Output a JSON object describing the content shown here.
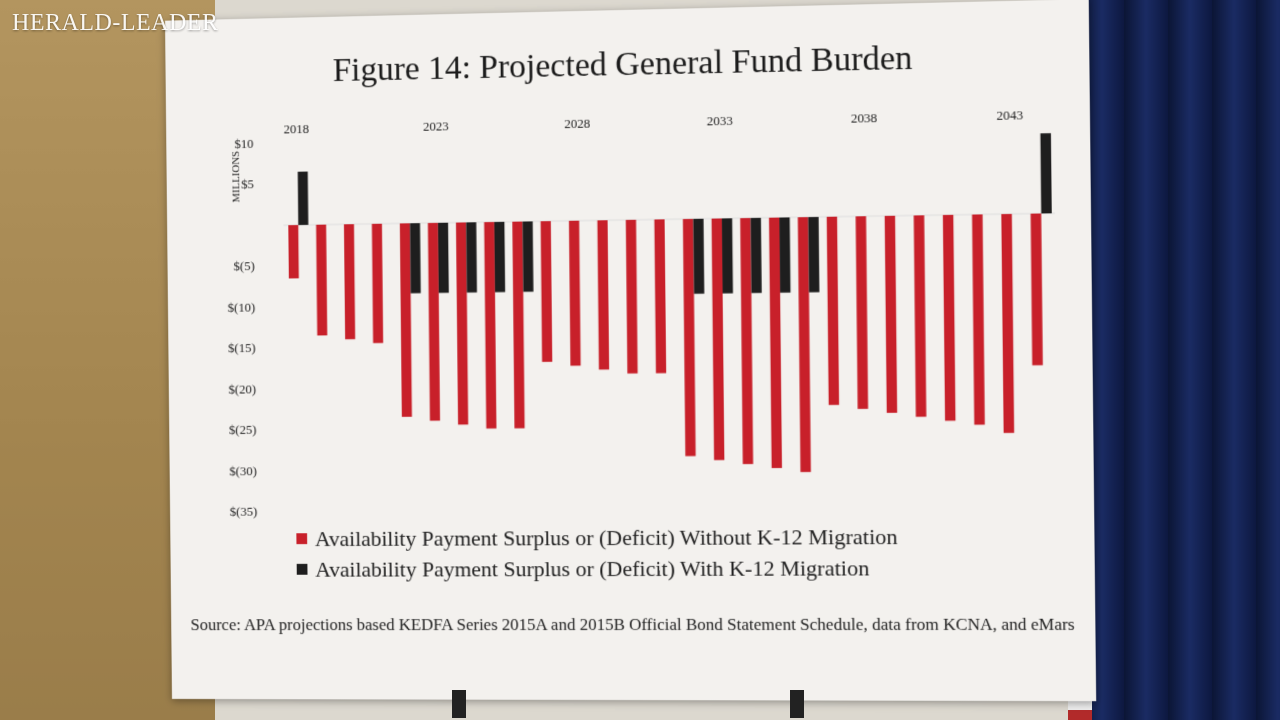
{
  "watermark": "HERALD-LEADER",
  "title": "Figure 14: Projected General Fund Burden",
  "colors": {
    "without": "#c8202a",
    "with": "#1e1e1e",
    "board": "#f3f1ee"
  },
  "source": "Source: APA projections based KEDFA Series 2015A and 2015B Official Bond Statement Schedule, data from KCNA, and eMars",
  "chart_data": {
    "type": "bar",
    "title": "Figure 14: Projected General Fund Burden",
    "ylabel": "MILLIONS",
    "ylim": [
      -35,
      10
    ],
    "x_tick_labels": [
      "2018",
      "2023",
      "2028",
      "2033",
      "2038",
      "2043"
    ],
    "y_tick_labels": [
      "$10",
      "$5",
      "$(5)",
      "$(10)",
      "$(15)",
      "$(20)",
      "$(25)",
      "$(30)",
      "$(35)"
    ],
    "y_tick_values": [
      10,
      5,
      -5,
      -10,
      -15,
      -20,
      -25,
      -30,
      -35
    ],
    "x": [
      2018,
      2019,
      2020,
      2021,
      2022,
      2023,
      2024,
      2025,
      2026,
      2027,
      2028,
      2029,
      2030,
      2031,
      2032,
      2033,
      2034,
      2035,
      2036,
      2037,
      2038,
      2039,
      2040,
      2041,
      2042,
      2043,
      2044
    ],
    "legend_position": "bottom",
    "series": [
      {
        "name": "Availability Payment Surplus or (Deficit) Without K-12 Migration",
        "values": [
          -6.5,
          -13.5,
          -14,
          -14.5,
          -23.5,
          -24,
          -24.5,
          -25,
          -25,
          -17,
          -17.5,
          -18,
          -18.5,
          -18.5,
          -28.5,
          -29,
          -29.5,
          -30,
          -30.5,
          -22.5,
          -23,
          -23.5,
          -24,
          -24.5,
          -25,
          -26,
          -18
        ]
      },
      {
        "name": "Availability Payment Surplus or (Deficit) With K-12 Migration",
        "values": [
          6.5,
          0,
          0,
          0,
          -8.5,
          -8.5,
          -8.5,
          -8.5,
          -8.5,
          0,
          0,
          0,
          0,
          0,
          -9,
          -9,
          -9,
          -9,
          -9,
          0,
          0,
          0,
          0,
          0,
          0,
          0,
          9.5
        ]
      }
    ]
  }
}
